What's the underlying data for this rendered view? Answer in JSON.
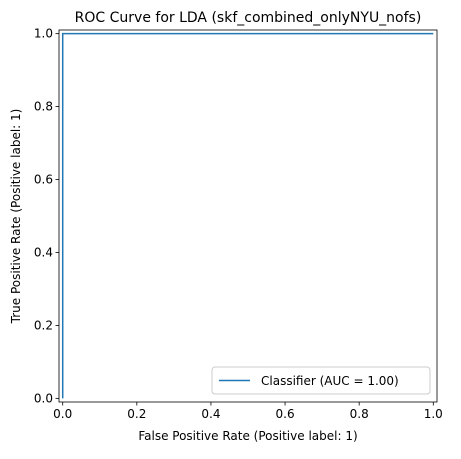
{
  "chart_data": {
    "type": "line",
    "title": "ROC Curve for LDA (skf_combined_onlyNYU_nofs)",
    "xlabel": "False Positive Rate (Positive label: 1)",
    "ylabel": "True Positive Rate (Positive label: 1)",
    "xlim": [
      -0.01,
      1.01
    ],
    "ylim": [
      -0.01,
      1.01
    ],
    "xticks": [
      0.0,
      0.2,
      0.4,
      0.6,
      0.8,
      1.0
    ],
    "yticks": [
      0.0,
      0.2,
      0.4,
      0.6,
      0.8,
      1.0
    ],
    "xtick_labels": [
      "0.0",
      "0.2",
      "0.4",
      "0.6",
      "0.8",
      "1.0"
    ],
    "ytick_labels": [
      "0.0",
      "0.2",
      "0.4",
      "0.6",
      "0.8",
      "1.0"
    ],
    "grid": false,
    "legend_position": "lower-right",
    "series": [
      {
        "name": "Classifier (AUC = 1.00)",
        "color": "#1f77b4",
        "x": [
          0.0,
          0.0,
          1.0
        ],
        "y": [
          0.0,
          1.0,
          1.0
        ]
      }
    ]
  }
}
